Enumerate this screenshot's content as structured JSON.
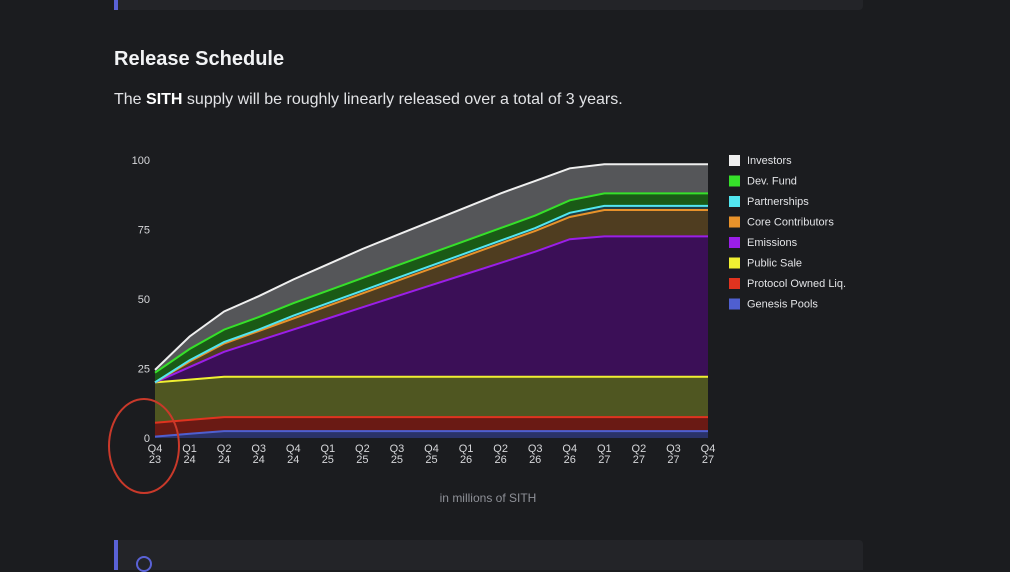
{
  "section": {
    "title": "Release Schedule",
    "desc_prefix": "The ",
    "desc_token": "SITH",
    "desc_suffix": " supply will be roughly linearly released over a total of 3 years."
  },
  "chart_data": {
    "type": "area",
    "stacked": true,
    "caption": "in millions of SITH",
    "ylim": [
      0,
      100
    ],
    "yticks": [
      0,
      25,
      50,
      75,
      100
    ],
    "categories": [
      [
        "Q4",
        "23"
      ],
      [
        "Q1",
        "24"
      ],
      [
        "Q2",
        "24"
      ],
      [
        "Q3",
        "24"
      ],
      [
        "Q4",
        "24"
      ],
      [
        "Q1",
        "25"
      ],
      [
        "Q2",
        "25"
      ],
      [
        "Q3",
        "25"
      ],
      [
        "Q4",
        "25"
      ],
      [
        "Q1",
        "26"
      ],
      [
        "Q2",
        "26"
      ],
      [
        "Q3",
        "26"
      ],
      [
        "Q4",
        "26"
      ],
      [
        "Q1",
        "27"
      ],
      [
        "Q2",
        "27"
      ],
      [
        "Q3",
        "27"
      ],
      [
        "Q4",
        "27"
      ]
    ],
    "grid": false,
    "legend_position": "right",
    "series": [
      {
        "name": "Genesis Pools",
        "color": "#4f5fd0",
        "fill": "#2a3268",
        "values": [
          0.5,
          1.5,
          2.5,
          2.5,
          2.5,
          2.5,
          2.5,
          2.5,
          2.5,
          2.5,
          2.5,
          2.5,
          2.5,
          2.5,
          2.5,
          2.5,
          2.5
        ]
      },
      {
        "name": "Protocol Owned Liq.",
        "color": "#e0331f",
        "fill": "#6a1a14",
        "values": [
          5,
          5,
          5,
          5,
          5,
          5,
          5,
          5,
          5,
          5,
          5,
          5,
          5,
          5,
          5,
          5,
          5
        ]
      },
      {
        "name": "Public Sale",
        "color": "#f0f032",
        "fill": "#4f5621",
        "values": [
          14.5,
          14.5,
          14.5,
          14.5,
          14.5,
          14.5,
          14.5,
          14.5,
          14.5,
          14.5,
          14.5,
          14.5,
          14.5,
          14.5,
          14.5,
          14.5,
          14.5
        ]
      },
      {
        "name": "Emissions",
        "color": "#9a1ee8",
        "fill": "#3b0f57",
        "values": [
          0,
          4.5,
          9,
          13,
          17,
          21,
          25,
          29,
          33,
          37,
          41,
          45,
          49.5,
          50.5,
          50.5,
          50.5,
          50.5
        ]
      },
      {
        "name": "Core Contributors",
        "color": "#e8922a",
        "fill": "#4f3d20",
        "values": [
          0,
          2,
          3,
          3.5,
          4,
          4.5,
          5,
          5.5,
          6,
          6.5,
          7,
          7.5,
          8,
          9.5,
          9.5,
          9.5,
          9.5
        ]
      },
      {
        "name": "Partnerships",
        "color": "#52e6f0",
        "fill": "#1e3e44",
        "values": [
          0,
          0.5,
          0.5,
          0.5,
          1,
          1,
          1,
          1,
          1,
          1,
          1,
          1,
          1.5,
          1.5,
          1.5,
          1.5,
          1.5
        ]
      },
      {
        "name": "Dev. Fund",
        "color": "#36e02a",
        "fill": "#1a5a16",
        "values": [
          3.5,
          4,
          4.5,
          4.5,
          4.5,
          4.5,
          4.5,
          4.5,
          4.5,
          4.5,
          4.5,
          4.5,
          4.5,
          4.5,
          4.5,
          4.5,
          4.5
        ]
      },
      {
        "name": "Investors",
        "color": "#efefef",
        "fill": "#555659",
        "values": [
          1,
          4.5,
          6.5,
          7.5,
          8.5,
          9.5,
          10.5,
          11,
          11.5,
          12,
          12.5,
          12.5,
          11.5,
          10.5,
          10.5,
          10.5,
          10.5
        ]
      }
    ],
    "legend_order": [
      "Investors",
      "Dev. Fund",
      "Partnerships",
      "Core Contributors",
      "Emissions",
      "Public Sale",
      "Protocol Owned Liq.",
      "Genesis Pools"
    ]
  }
}
